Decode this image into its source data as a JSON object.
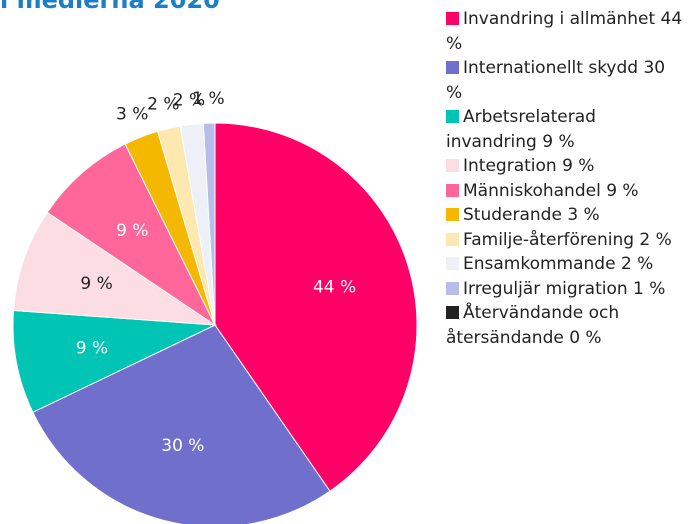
{
  "chart_data": {
    "type": "pie",
    "title": "i medierna 2020",
    "categories": [
      "Invandring i allmänhet 44 %",
      "Internationellt skydd 30 %",
      "Arbetsrelaterad invandring 9 %",
      "Integration 9 %",
      "Människohandel 9 %",
      "Studerande 3 %",
      "Familje-återförening 2 %",
      "Ensamkommande 2 %",
      "Irreguljär migration 1 %",
      "Återvändande och återsändande 0 %"
    ],
    "values": [
      44,
      30,
      9,
      9,
      9,
      3,
      2,
      2,
      1,
      0
    ],
    "value_labels": [
      "44 %",
      "30 %",
      "9 %",
      "9 %",
      "9 %",
      "3 %",
      "2 %",
      "2 %",
      "1 %",
      "0 %"
    ],
    "colors": [
      "#ff0066",
      "#7070cc",
      "#00c4b4",
      "#fcdde3",
      "#ff6699",
      "#f5b800",
      "#fde9b0",
      "#eef0f8",
      "#b8bce8",
      "#222222"
    ],
    "legend": "right"
  }
}
